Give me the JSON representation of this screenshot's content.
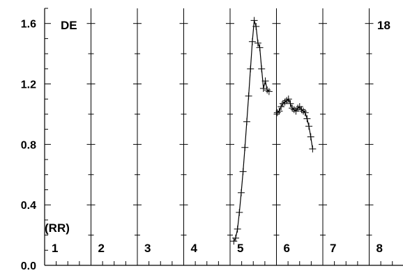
{
  "chart_data": {
    "type": "line",
    "corner_labels": {
      "top_left": "DE",
      "top_right": "18",
      "bottom_left": "(RR)"
    },
    "panels": [
      "1",
      "2",
      "3",
      "4",
      "5",
      "6",
      "7",
      "8"
    ],
    "y_ticks": [
      {
        "value": 0.0,
        "label": "0.0"
      },
      {
        "value": 0.4,
        "label": "0.4"
      },
      {
        "value": 0.8,
        "label": "0.8"
      },
      {
        "value": 1.2,
        "label": "1.2"
      },
      {
        "value": 1.6,
        "label": "1.6"
      }
    ],
    "ylim": [
      0,
      1.7
    ],
    "xlim": [
      0,
      8.1
    ],
    "grid": false,
    "series": [
      {
        "marker": "plus",
        "color": "#000000",
        "points": [
          [
            4.08,
            0.16
          ],
          [
            4.12,
            0.18
          ],
          [
            4.16,
            0.24
          ],
          [
            4.2,
            0.35
          ],
          [
            4.24,
            0.48
          ],
          [
            4.28,
            0.62
          ],
          [
            4.32,
            0.78
          ],
          [
            4.36,
            0.95
          ],
          [
            4.4,
            1.12
          ],
          [
            4.44,
            1.3
          ],
          [
            4.48,
            1.48
          ],
          [
            4.52,
            1.62
          ],
          [
            4.56,
            1.58
          ],
          [
            4.6,
            1.47
          ],
          [
            4.64,
            1.44
          ],
          [
            4.68,
            1.3
          ],
          [
            4.72,
            1.17
          ],
          [
            4.76,
            1.22
          ],
          [
            4.8,
            1.16
          ],
          [
            4.84,
            1.15
          ]
        ]
      },
      {
        "marker": "plus",
        "color": "#000000",
        "points": [
          [
            5.02,
            1.01
          ],
          [
            5.06,
            1.02
          ],
          [
            5.1,
            1.05
          ],
          [
            5.14,
            1.07
          ],
          [
            5.18,
            1.08
          ],
          [
            5.22,
            1.09
          ],
          [
            5.26,
            1.1
          ],
          [
            5.3,
            1.07
          ],
          [
            5.34,
            1.04
          ],
          [
            5.38,
            1.03
          ],
          [
            5.42,
            1.02
          ],
          [
            5.46,
            1.04
          ],
          [
            5.5,
            1.05
          ],
          [
            5.54,
            1.03
          ],
          [
            5.58,
            1.02
          ],
          [
            5.62,
            1.01
          ],
          [
            5.66,
            0.97
          ],
          [
            5.7,
            0.92
          ],
          [
            5.74,
            0.85
          ],
          [
            5.78,
            0.77
          ]
        ]
      }
    ]
  }
}
